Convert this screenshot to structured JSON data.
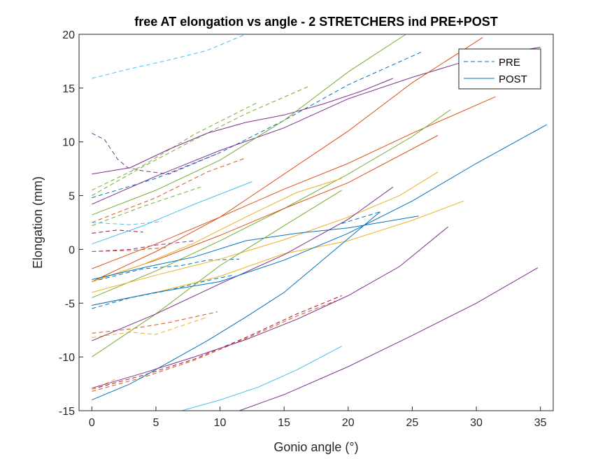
{
  "chart_data": {
    "type": "line",
    "title": "free AT elongation vs angle - 2 STRETCHERS ind PRE+POST",
    "xlabel": "Gonio angle (°)",
    "ylabel": "Elongation (mm)",
    "xlim": [
      -1,
      36
    ],
    "ylim": [
      -15,
      20
    ],
    "xticks": [
      0,
      5,
      10,
      15,
      20,
      25,
      30,
      35
    ],
    "yticks": [
      -15,
      -10,
      -5,
      0,
      5,
      10,
      15,
      20
    ],
    "xtick_labels": [
      "0",
      "5",
      "10",
      "15",
      "20",
      "25",
      "30",
      "35"
    ],
    "ytick_labels": [
      "-15",
      "-10",
      "-5",
      "0",
      "5",
      "10",
      "15",
      "20"
    ],
    "grid": false,
    "legend": {
      "placement": "top-right",
      "entries": [
        {
          "label": "PRE",
          "style": "dashed",
          "color": "#0072BD"
        },
        {
          "label": "POST",
          "style": "solid",
          "color": "#0072BD"
        }
      ]
    },
    "colors": {
      "blue": "#0072BD",
      "orange": "#D95319",
      "yellow": "#EDB120",
      "purple": "#7E2F8E",
      "green": "#77AC30",
      "cyan": "#4DBEEE",
      "red": "#A2142F"
    },
    "series": [
      {
        "condition": "PRE",
        "color": "#4DBEEE",
        "x": [
          0,
          3,
          6,
          9,
          12
        ],
        "y": [
          15.9,
          16.8,
          17.6,
          18.5,
          20
        ]
      },
      {
        "condition": "PRE",
        "color": "#7E2F8E",
        "x": [
          0,
          1,
          2,
          2.8,
          4,
          6,
          10
        ],
        "y": [
          10.8,
          10.2,
          8.4,
          7.6,
          7.3,
          7.0,
          9.0
        ]
      },
      {
        "condition": "PRE",
        "color": "#77AC30",
        "x": [
          0,
          4,
          8,
          13
        ],
        "y": [
          5.5,
          7.8,
          10.7,
          13.7
        ]
      },
      {
        "condition": "PRE",
        "color": "#77AC30",
        "x": [
          0,
          4,
          8,
          12,
          17
        ],
        "y": [
          5.0,
          7.7,
          10.2,
          12.6,
          15.2
        ]
      },
      {
        "condition": "PRE",
        "color": "#0072BD",
        "x": [
          0,
          5,
          10,
          15,
          20,
          25.8
        ],
        "y": [
          4.8,
          6.6,
          9.0,
          12.0,
          15.3,
          18.4
        ]
      },
      {
        "condition": "PRE",
        "color": "#D95319",
        "x": [
          0,
          5,
          9,
          12
        ],
        "y": [
          2.5,
          4.8,
          7.2,
          8.5
        ]
      },
      {
        "condition": "PRE",
        "color": "#77AC30",
        "x": [
          0,
          4,
          8.5
        ],
        "y": [
          2.2,
          4.0,
          5.8
        ]
      },
      {
        "condition": "PRE",
        "color": "#4DBEEE",
        "x": [
          0,
          3,
          5.5
        ],
        "y": [
          2.5,
          2.3,
          2.6
        ]
      },
      {
        "condition": "PRE",
        "color": "#A2142F",
        "x": [
          0,
          2,
          4
        ],
        "y": [
          1.5,
          1.8,
          1.6
        ]
      },
      {
        "condition": "PRE",
        "color": "#7E2F8E",
        "x": [
          0,
          3,
          5,
          8
        ],
        "y": [
          -0.2,
          0.0,
          0.4,
          0.8
        ]
      },
      {
        "condition": "PRE",
        "color": "#D95319",
        "x": [
          0,
          3,
          6
        ],
        "y": [
          -0.2,
          -0.1,
          0.2
        ]
      },
      {
        "condition": "PRE",
        "color": "#0072BD",
        "x": [
          0,
          4,
          7,
          9,
          11.5
        ],
        "y": [
          -3.0,
          -1.8,
          -1.5,
          -1.0,
          -0.9
        ]
      },
      {
        "condition": "PRE",
        "color": "#0072BD",
        "x": [
          0,
          3,
          6,
          9,
          11
        ],
        "y": [
          -5.5,
          -4.5,
          -3.8,
          -2.9,
          -2.4
        ]
      },
      {
        "condition": "PRE",
        "color": "#D95319",
        "x": [
          0,
          3,
          6,
          9.8
        ],
        "y": [
          -7.8,
          -7.4,
          -6.8,
          -5.8
        ]
      },
      {
        "condition": "PRE",
        "color": "#EDB120",
        "x": [
          0,
          3,
          5,
          9
        ],
        "y": [
          -8.2,
          -7.7,
          -7.9,
          -6.3
        ]
      },
      {
        "condition": "PRE",
        "color": "#A2142F",
        "x": [
          0,
          4,
          8,
          12,
          16,
          19.5
        ],
        "y": [
          -13.0,
          -11.7,
          -10.2,
          -8.2,
          -6.0,
          -4.3
        ]
      },
      {
        "condition": "PRE",
        "color": "#EDB120",
        "x": [
          0,
          2
        ],
        "y": [
          -13.0,
          -12.0
        ]
      },
      {
        "condition": "PRE",
        "color": "#D95319",
        "x": [
          0,
          4,
          8,
          12,
          16,
          19
        ],
        "y": [
          -13.2,
          -11.9,
          -10.3,
          -8.3,
          -6.2,
          -4.8
        ]
      },
      {
        "condition": "PRE",
        "color": "#0072BD",
        "x": [
          19.5,
          22.5
        ],
        "y": [
          2.4,
          3.5
        ]
      },
      {
        "condition": "POST",
        "color": "#7E2F8E",
        "x": [
          0,
          3,
          6,
          9,
          12,
          15,
          18,
          21,
          23.5
        ],
        "y": [
          7.0,
          7.6,
          9.3,
          10.8,
          11.8,
          12.5,
          13.5,
          14.7,
          15.9
        ]
      },
      {
        "condition": "POST",
        "color": "#7E2F8E",
        "x": [
          0,
          5,
          10,
          15,
          20,
          25,
          30,
          35
        ],
        "y": [
          4.2,
          6.8,
          9.2,
          11.3,
          14.0,
          16.0,
          17.8,
          18.8
        ]
      },
      {
        "condition": "POST",
        "color": "#77AC30",
        "x": [
          0,
          5,
          10,
          15,
          20,
          24.5
        ],
        "y": [
          3.2,
          5.5,
          8.3,
          12.0,
          16.5,
          20
        ]
      },
      {
        "condition": "POST",
        "color": "#D95319",
        "x": [
          0,
          5,
          10,
          15,
          20,
          25,
          30.5
        ],
        "y": [
          -3.0,
          -0.2,
          3.0,
          7.0,
          11.0,
          15.5,
          19.7
        ]
      },
      {
        "condition": "POST",
        "color": "#D95319",
        "x": [
          0,
          5,
          10,
          15,
          20,
          25,
          31.5
        ],
        "y": [
          -1.8,
          0.5,
          3.0,
          5.6,
          8.0,
          10.8,
          14.2
        ]
      },
      {
        "condition": "POST",
        "color": "#77AC30",
        "x": [
          0,
          5,
          10,
          15,
          20,
          25,
          28
        ],
        "y": [
          -4.5,
          -2.0,
          0.8,
          3.8,
          7.0,
          10.5,
          13.0
        ]
      },
      {
        "condition": "POST",
        "color": "#D95319",
        "x": [
          0,
          5,
          10,
          15,
          20,
          27
        ],
        "y": [
          -3.0,
          -1.0,
          1.3,
          3.8,
          6.2,
          10.6
        ]
      },
      {
        "condition": "POST",
        "color": "#4DBEEE",
        "x": [
          0,
          4,
          8,
          12.5
        ],
        "y": [
          0.5,
          2.2,
          4.2,
          6.3
        ]
      },
      {
        "condition": "POST",
        "color": "#EDB120",
        "x": [
          0,
          4,
          8,
          12,
          16,
          19.5
        ],
        "y": [
          -3.0,
          -1.4,
          0.6,
          3.0,
          5.3,
          6.6
        ]
      },
      {
        "condition": "POST",
        "color": "#EDB120",
        "x": [
          0,
          5,
          10,
          15,
          20,
          24,
          27
        ],
        "y": [
          -4.0,
          -2.4,
          -0.9,
          0.9,
          3.0,
          5.0,
          7.2
        ]
      },
      {
        "condition": "POST",
        "color": "#EDB120",
        "x": [
          0,
          5,
          10,
          15,
          20,
          25,
          29
        ],
        "y": [
          -5.2,
          -4.0,
          -2.5,
          -0.4,
          0.8,
          2.7,
          4.5
        ]
      },
      {
        "condition": "POST",
        "color": "#0072BD",
        "x": [
          0,
          4,
          8,
          12,
          16,
          20,
          25.5
        ],
        "y": [
          -2.8,
          -1.7,
          -0.7,
          0.8,
          1.5,
          2.0,
          3.1
        ]
      },
      {
        "condition": "POST",
        "color": "#77AC30",
        "x": [
          0,
          5,
          10,
          15,
          19.5
        ],
        "y": [
          -10.0,
          -6.0,
          -1.5,
          2.2,
          5.5
        ]
      },
      {
        "condition": "POST",
        "color": "#7E2F8E",
        "x": [
          0,
          5,
          10,
          15,
          20,
          23.5
        ],
        "y": [
          -8.5,
          -6.0,
          -3.2,
          -0.5,
          2.8,
          5.8
        ]
      },
      {
        "condition": "POST",
        "color": "#0072BD",
        "x": [
          0,
          5,
          10,
          15,
          20,
          25,
          30,
          35.5
        ],
        "y": [
          -5.2,
          -4.0,
          -3.0,
          -1.0,
          1.5,
          4.5,
          8.0,
          11.6
        ]
      },
      {
        "condition": "POST",
        "color": "#0072BD",
        "x": [
          0,
          3,
          6,
          9,
          12,
          15,
          18,
          22.5
        ],
        "y": [
          -14.0,
          -12.5,
          -10.5,
          -8.5,
          -6.3,
          -4.0,
          -1.0,
          3.5
        ]
      },
      {
        "condition": "POST",
        "color": "#7E2F8E",
        "x": [
          0,
          4,
          8,
          12,
          16,
          20,
          24,
          27.8
        ],
        "y": [
          -12.9,
          -11.5,
          -10.0,
          -8.4,
          -6.5,
          -4.3,
          -1.6,
          2.1
        ]
      },
      {
        "condition": "POST",
        "color": "#4DBEEE",
        "x": [
          7,
          10,
          13,
          16,
          19.5
        ],
        "y": [
          -15,
          -14.0,
          -12.8,
          -11.2,
          -9.0
        ]
      },
      {
        "condition": "POST",
        "color": "#7E2F8E",
        "x": [
          11.5,
          15,
          20,
          25,
          30,
          34.8
        ],
        "y": [
          -15,
          -13.5,
          -10.9,
          -8.0,
          -5.0,
          -1.7
        ]
      }
    ]
  }
}
